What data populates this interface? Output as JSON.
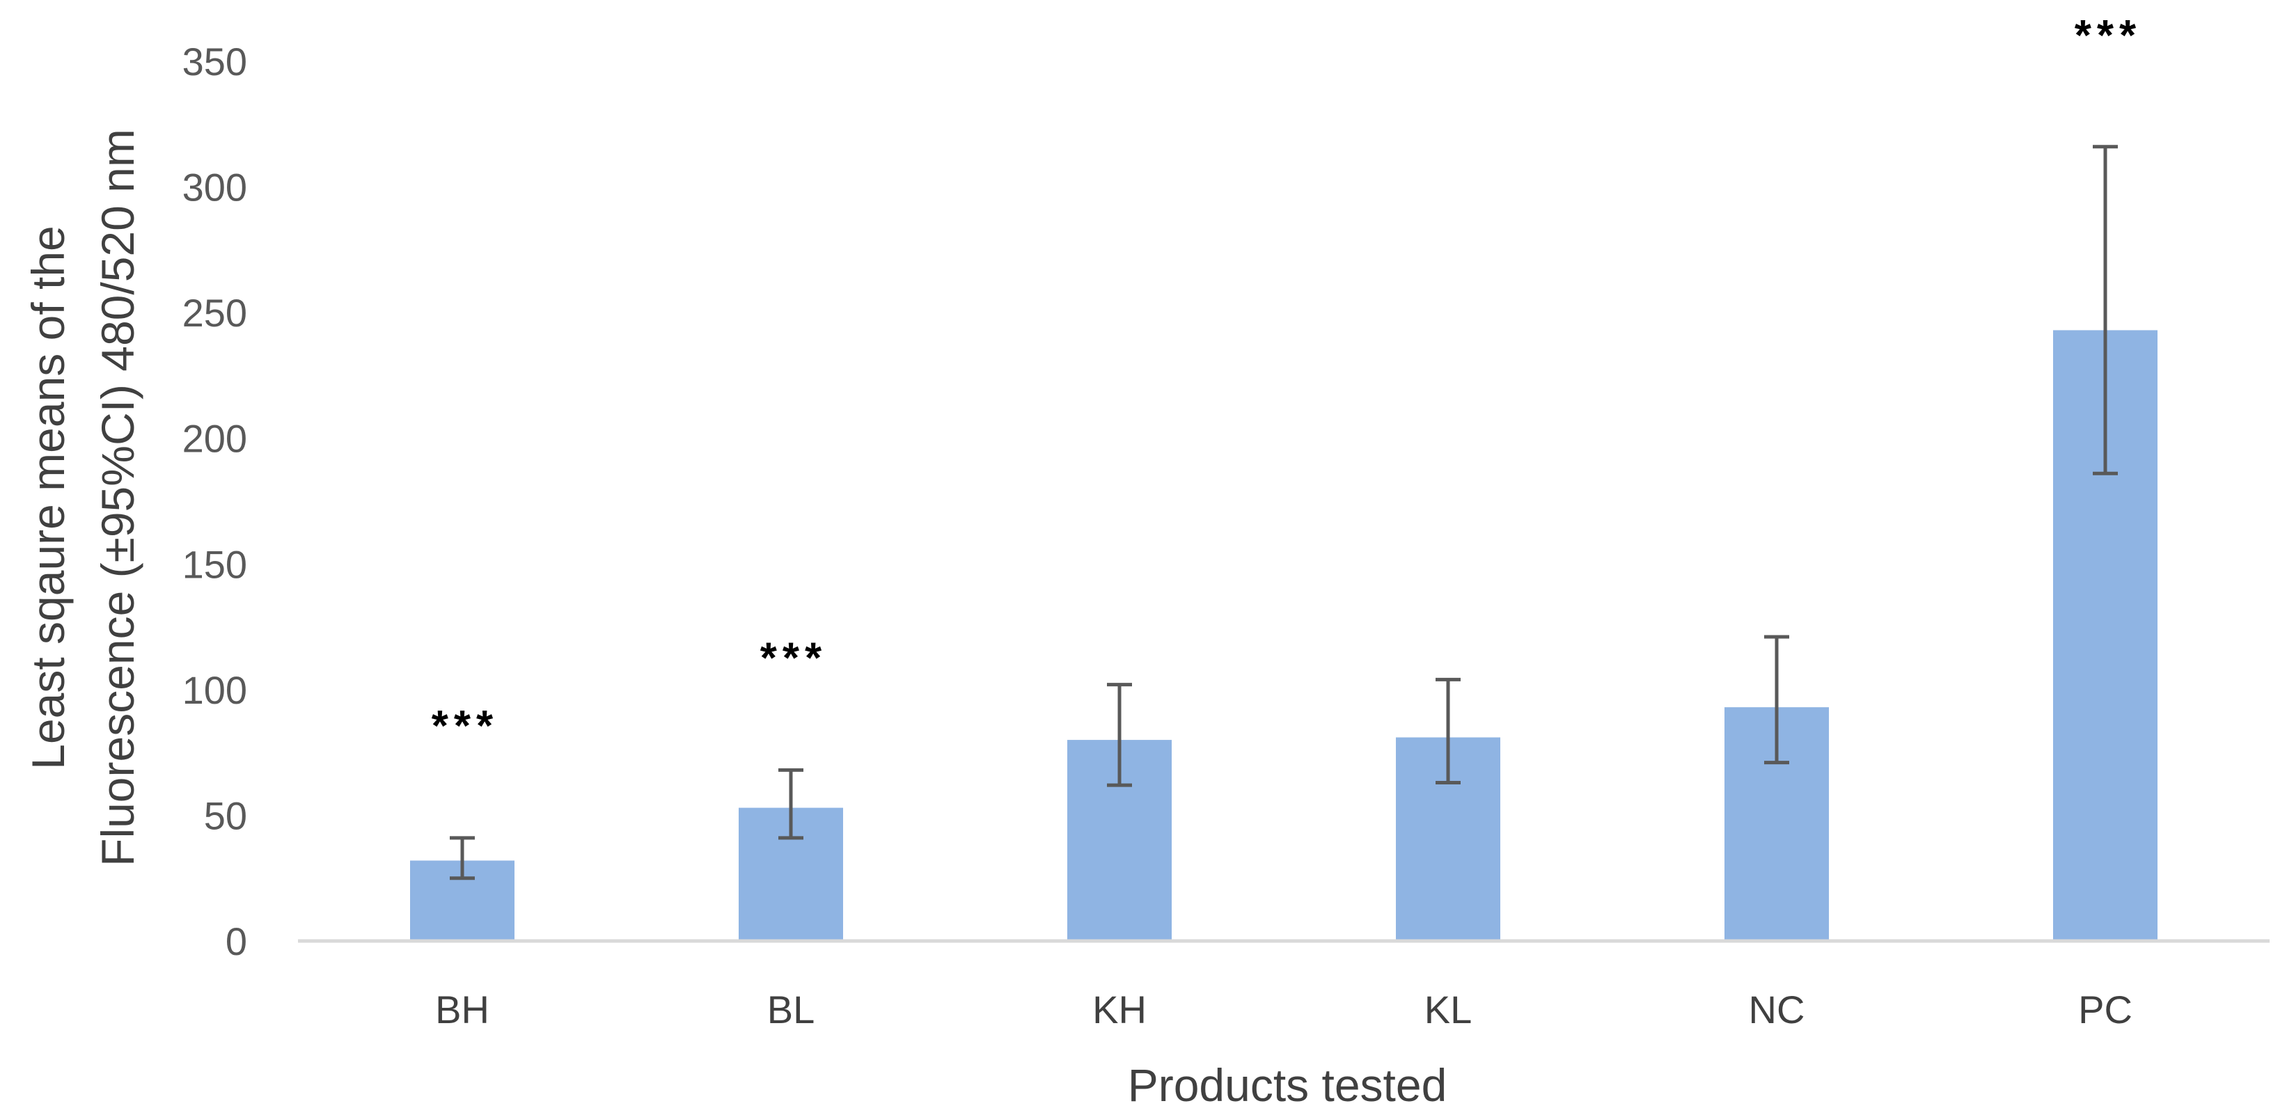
{
  "chart_data": {
    "type": "bar",
    "categories": [
      "BH",
      "BL",
      "KH",
      "KL",
      "NC",
      "PC"
    ],
    "values": [
      32,
      53,
      80,
      81,
      93,
      243
    ],
    "error_low": [
      25,
      41,
      62,
      63,
      71,
      186
    ],
    "error_high": [
      41,
      68,
      102,
      104,
      121,
      316
    ],
    "annotations": [
      "***",
      "***",
      "",
      "",
      "",
      "***"
    ],
    "xlabel": "Products tested",
    "ylabel_line1": "Least sqaure means of the",
    "ylabel_line2": "Fluorescence (±95%CI) 480/520 nm",
    "ylim": [
      0,
      350
    ],
    "yticks": [
      0,
      50,
      100,
      150,
      200,
      250,
      300,
      350
    ],
    "grid": false,
    "legend": "none",
    "colors": {
      "bar": "#8FB4E3",
      "error_bar": "#595959",
      "axis": "#D9D9D9"
    }
  }
}
